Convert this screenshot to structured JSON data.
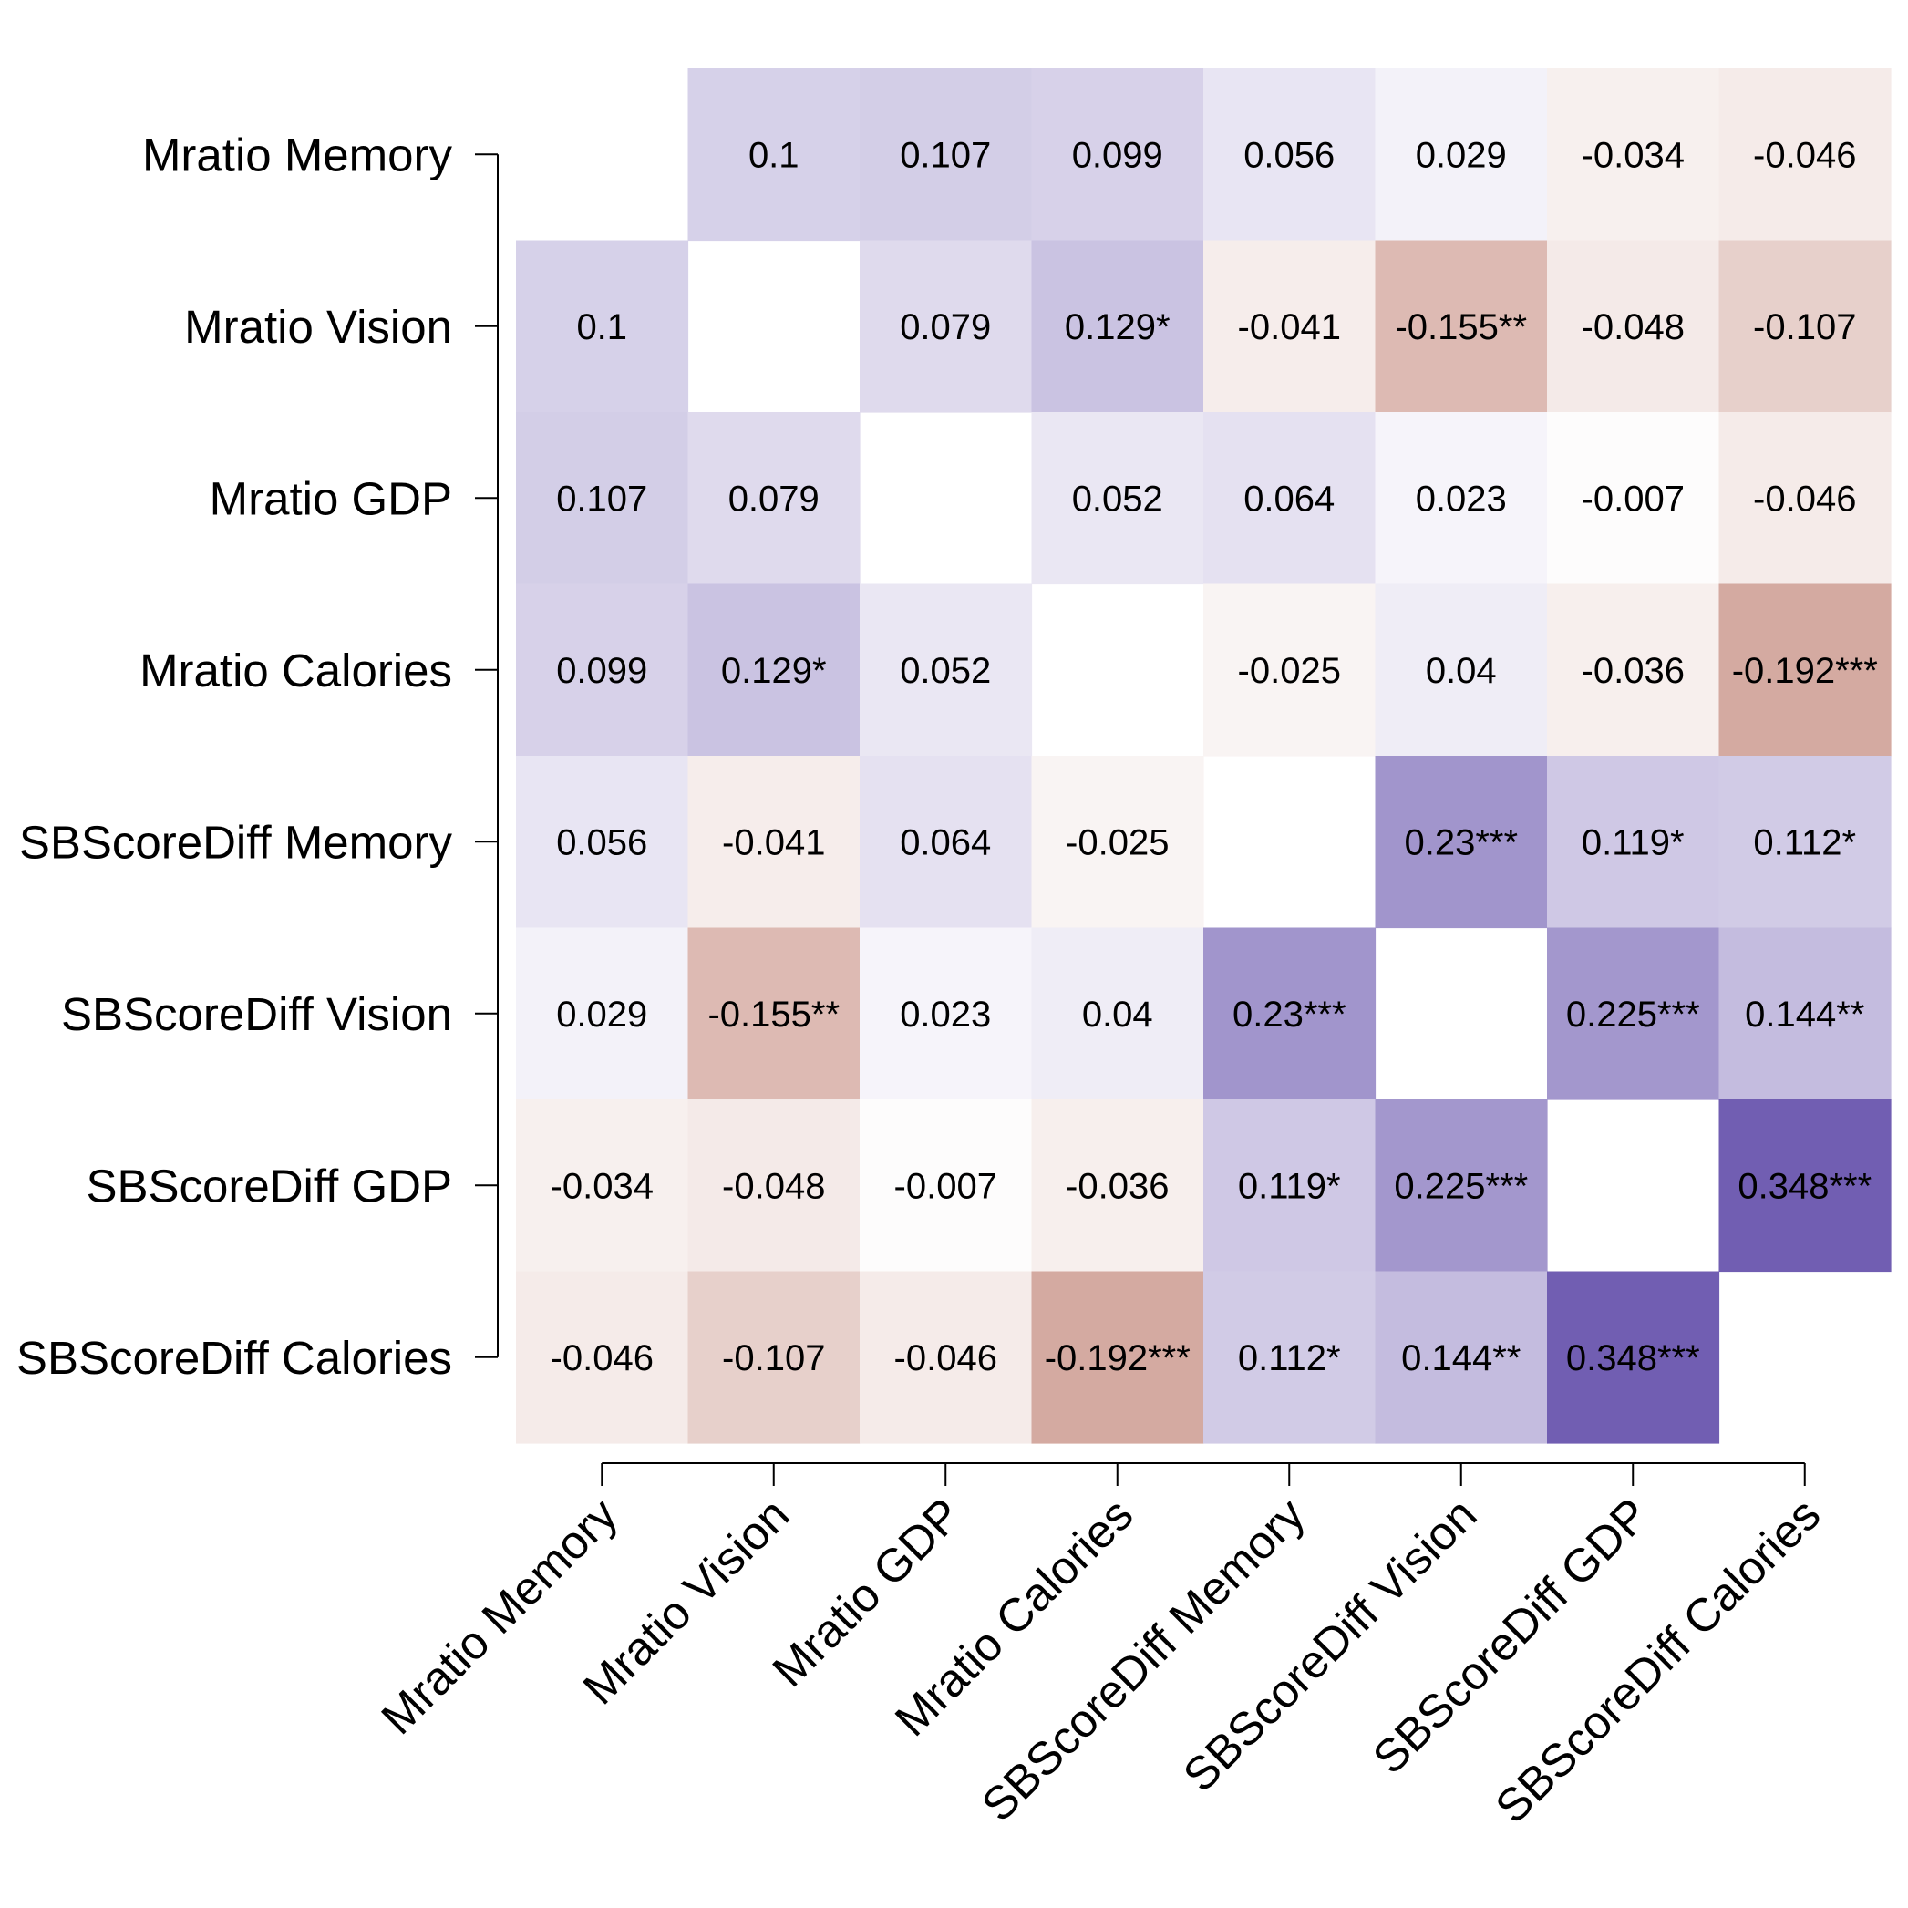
{
  "chart_data": {
    "type": "heatmap",
    "title": "",
    "xlabel": "",
    "ylabel": "",
    "row_labels": [
      "Mratio Memory",
      "Mratio Vision",
      "Mratio GDP",
      "Mratio Calories",
      "SBScoreDiff Memory",
      "SBScoreDiff Vision",
      "SBScoreDiff GDP",
      "SBScoreDiff Calories"
    ],
    "col_labels": [
      "Mratio Memory",
      "Mratio Vision",
      "Mratio GDP",
      "Mratio Calories",
      "SBScoreDiff Memory",
      "SBScoreDiff Vision",
      "SBScoreDiff GDP",
      "SBScoreDiff Calories"
    ],
    "values": [
      [
        null,
        0.1,
        0.107,
        0.099,
        0.056,
        0.029,
        -0.034,
        -0.046
      ],
      [
        0.1,
        null,
        0.079,
        0.129,
        -0.041,
        -0.155,
        -0.048,
        -0.107
      ],
      [
        0.107,
        0.079,
        null,
        0.052,
        0.064,
        0.023,
        -0.007,
        -0.046
      ],
      [
        0.099,
        0.129,
        0.052,
        null,
        -0.025,
        0.04,
        -0.036,
        -0.192
      ],
      [
        0.056,
        -0.041,
        0.064,
        -0.025,
        null,
        0.23,
        0.119,
        0.112
      ],
      [
        0.029,
        -0.155,
        0.023,
        0.04,
        0.23,
        null,
        0.225,
        0.144
      ],
      [
        -0.034,
        -0.048,
        -0.007,
        -0.036,
        0.119,
        0.225,
        null,
        0.348
      ],
      [
        -0.046,
        -0.107,
        -0.046,
        -0.192,
        0.112,
        0.144,
        0.348,
        null
      ]
    ],
    "labels": [
      [
        "",
        "0.1",
        "0.107",
        "0.099",
        "0.056",
        "0.029",
        "-0.034",
        "-0.046"
      ],
      [
        "0.1",
        "",
        "0.079",
        "0.129*",
        "-0.041",
        "-0.155**",
        "-0.048",
        "-0.107"
      ],
      [
        "0.107",
        "0.079",
        "",
        "0.052",
        "0.064",
        "0.023",
        "-0.007",
        "-0.046"
      ],
      [
        "0.099",
        "0.129*",
        "0.052",
        "",
        "-0.025",
        "0.04",
        "-0.036",
        "-0.192***"
      ],
      [
        "0.056",
        "-0.041",
        "0.064",
        "-0.025",
        "",
        "0.23***",
        "0.119*",
        "0.112*"
      ],
      [
        "0.029",
        "-0.155**",
        "0.023",
        "0.04",
        "0.23***",
        "",
        "0.225***",
        "0.144**"
      ],
      [
        "-0.034",
        "-0.048",
        "-0.007",
        "-0.036",
        "0.119*",
        "0.225***",
        "",
        "0.348***"
      ],
      [
        "-0.046",
        "-0.107",
        "-0.046",
        "-0.192***",
        "0.112*",
        "0.144**",
        "0.348***",
        ""
      ]
    ],
    "color_scale": {
      "positive": "#5c46a6",
      "negative": "#a64e3c",
      "neutral": "#ffffff",
      "max_abs": 0.4
    },
    "grid": false
  }
}
